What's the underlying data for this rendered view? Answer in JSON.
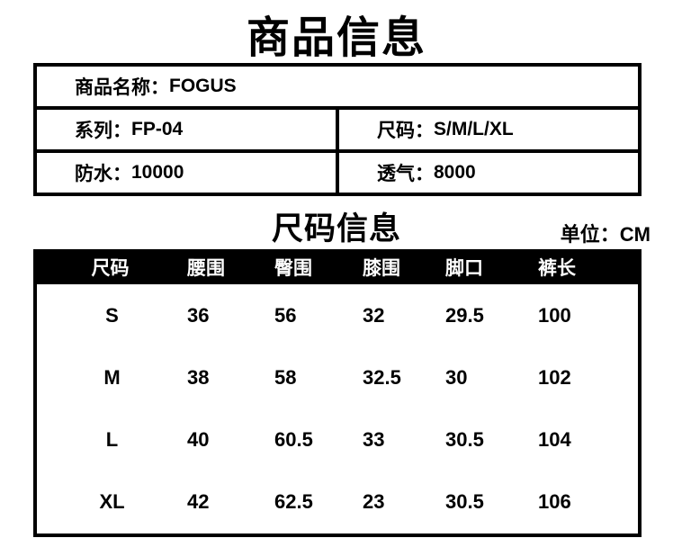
{
  "colors": {
    "background": "#ffffff",
    "text": "#000000",
    "border": "#000000",
    "size_header_bg": "#000000",
    "size_header_text": "#ffffff"
  },
  "title": "商品信息",
  "info_table": {
    "rows": [
      {
        "cells": [
          {
            "label": "商品名称：",
            "value": "FOGUS"
          }
        ]
      },
      {
        "cells": [
          {
            "label": "系列：",
            "value": "FP-04"
          },
          {
            "label": "尺码：",
            "value": "S/M/L/XL"
          }
        ]
      },
      {
        "cells": [
          {
            "label": "防水：",
            "value": "10000"
          },
          {
            "label": "透气：",
            "value": "8000"
          }
        ]
      }
    ]
  },
  "size_section": {
    "title": "尺码信息",
    "unit_label": "单位：CM",
    "table": {
      "headers": [
        "尺码",
        "腰围",
        "臀围",
        "膝围",
        "脚口",
        "裤长"
      ],
      "rows": [
        [
          "S",
          "36",
          "56",
          "32",
          "29.5",
          "100"
        ],
        [
          "M",
          "38",
          "58",
          "32.5",
          "30",
          "102"
        ],
        [
          "L",
          "40",
          "60.5",
          "33",
          "30.5",
          "104"
        ],
        [
          "XL",
          "42",
          "62.5",
          "23",
          "30.5",
          "106"
        ]
      ]
    }
  }
}
